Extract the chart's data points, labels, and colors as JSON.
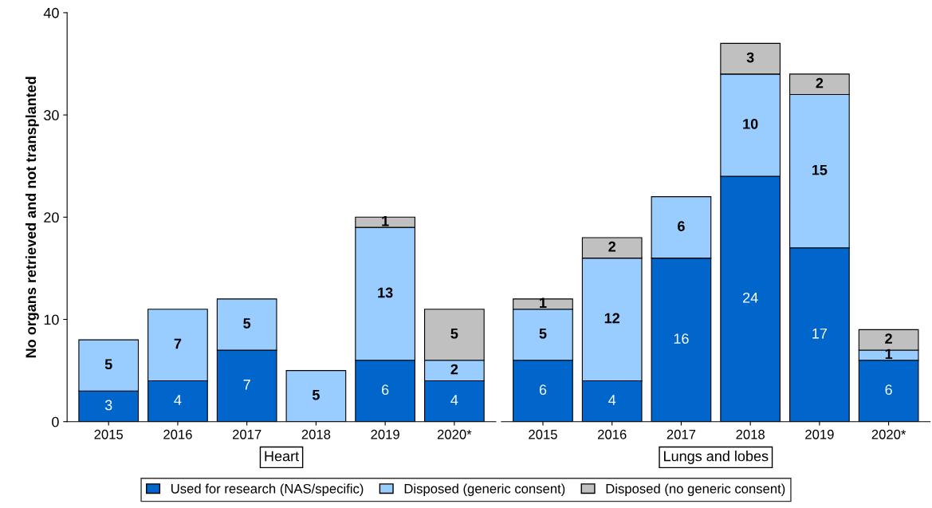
{
  "chart_data": [
    {
      "type": "bar",
      "stacked": true,
      "xlabel": "Heart",
      "ylabel": "No organs retrieved and not transplanted",
      "categories": [
        "2015",
        "2016",
        "2017",
        "2018",
        "2019",
        "2020*"
      ],
      "ylim": [
        0,
        40
      ],
      "yticks": [
        0,
        10,
        20,
        30,
        40
      ],
      "grid": false,
      "legend": "bottom",
      "series": [
        {
          "name": "Used for research (NAS/specific)",
          "color": "#0066cc",
          "values": [
            3,
            4,
            7,
            null,
            6,
            4
          ],
          "value_labels": [
            "3",
            "4",
            "7",
            null,
            "6",
            "4"
          ]
        },
        {
          "name": "Disposed (generic consent)",
          "color": "#99ccff",
          "values": [
            5,
            7,
            5,
            5,
            13,
            2
          ],
          "value_labels": [
            "5",
            "7",
            "5",
            "5",
            "13",
            "2"
          ]
        },
        {
          "name": "Disposed (no generic consent)",
          "color": "#c0c0c0",
          "values": [
            null,
            null,
            null,
            null,
            1,
            5
          ],
          "value_labels": [
            null,
            null,
            null,
            null,
            "1",
            "5"
          ]
        }
      ]
    },
    {
      "type": "bar",
      "stacked": true,
      "xlabel": "Lungs and lobes",
      "categories": [
        "2015",
        "2016",
        "2017",
        "2018",
        "2019",
        "2020*"
      ],
      "ylim": [
        0,
        40
      ],
      "yticks": [
        0,
        10,
        20,
        30,
        40
      ],
      "tick_labels": "x",
      "grid": false,
      "series": [
        {
          "color": "#0066cc",
          "values": [
            6,
            4,
            16,
            24,
            17,
            6
          ],
          "value_labels": [
            "6",
            "4",
            "16",
            "24",
            "17",
            "6"
          ]
        },
        {
          "color": "#99ccff",
          "values": [
            5,
            12,
            6,
            10,
            15,
            1
          ],
          "value_labels": [
            "5",
            "12",
            "6",
            "10",
            "15",
            "1"
          ]
        },
        {
          "color": "#c0c0c0",
          "values": [
            1,
            2,
            null,
            3,
            2,
            2
          ],
          "value_labels": [
            "1",
            "2",
            null,
            "3",
            "2",
            "2"
          ]
        }
      ]
    }
  ]
}
